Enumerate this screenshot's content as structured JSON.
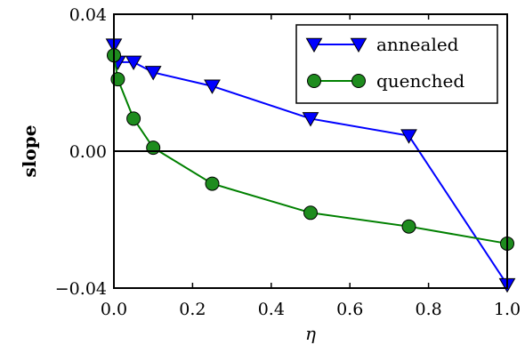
{
  "chart_data": {
    "type": "line",
    "xlabel": "η",
    "ylabel": "slope",
    "xlim": [
      0.0,
      1.0
    ],
    "ylim": [
      -0.04,
      0.04
    ],
    "x_ticks": [
      "0.0",
      "0.2",
      "0.4",
      "0.6",
      "0.8",
      "1.0"
    ],
    "x_tick_values": [
      0.0,
      0.2,
      0.4,
      0.6,
      0.8,
      1.0
    ],
    "y_ticks": [
      "−0.04",
      "0.00",
      "0.04"
    ],
    "y_tick_values": [
      -0.04,
      0.0,
      0.04
    ],
    "reference_line_y": 0.0,
    "grid": false,
    "legend_position": "upper right",
    "series": [
      {
        "name": "annealed",
        "color": "#0000ff",
        "marker": "triangle-down",
        "marker_color": "#0000ff",
        "x": [
          0.0,
          0.01,
          0.05,
          0.1,
          0.25,
          0.5,
          0.75,
          1.0
        ],
        "y": [
          0.031,
          0.026,
          0.026,
          0.023,
          0.019,
          0.0095,
          0.0045,
          -0.039
        ]
      },
      {
        "name": "quenched",
        "color": "#008000",
        "marker": "circle",
        "marker_color": "#1e8c1e",
        "x": [
          0.0,
          0.01,
          0.05,
          0.1,
          0.25,
          0.5,
          0.75,
          1.0
        ],
        "y": [
          0.028,
          0.021,
          0.0095,
          0.001,
          -0.0095,
          -0.018,
          -0.022,
          -0.027
        ]
      }
    ]
  }
}
